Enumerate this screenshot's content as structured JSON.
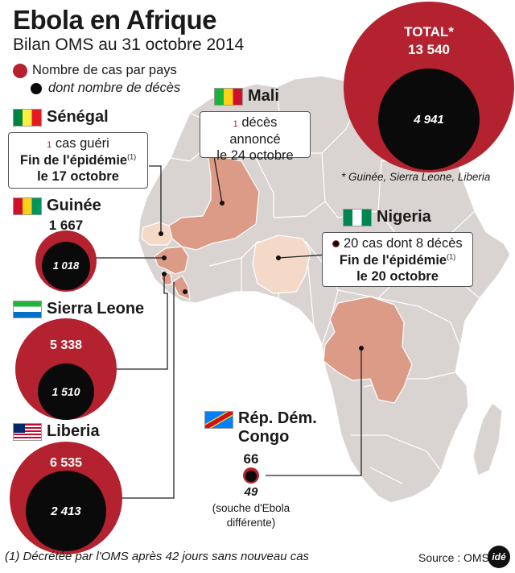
{
  "header": {
    "title": "Ebola en Afrique",
    "subtitle": "Bilan OMS au 31 octobre 2014"
  },
  "legend": {
    "cases_label": "Nombre de cas par pays",
    "deaths_label": "dont nombre de décès"
  },
  "total": {
    "label": "TOTAL*",
    "cases": "13 540",
    "deaths": "4 941",
    "note": "* Guinée, Sierra Leone, Liberia"
  },
  "countries": {
    "mali": {
      "name": "Mali",
      "note_count": "1",
      "note_text": "décès annoncé",
      "note_date": "le 24 octobre"
    },
    "senegal": {
      "name": "Sénégal",
      "note_count": "1",
      "note_text": "cas guéri",
      "note_bold": "Fin de l'épidémie",
      "note_sup": "(1)",
      "note_date": "le 17 octobre"
    },
    "guinee": {
      "name": "Guinée",
      "cases": "1 667",
      "deaths": "1 018"
    },
    "nigeria": {
      "name": "Nigeria",
      "note_text": "20 cas dont 8 décès",
      "note_bold": "Fin de l'épidémie",
      "note_sup": "(1)",
      "note_date": "le 20 octobre"
    },
    "sierra_leone": {
      "name": "Sierra Leone",
      "cases": "5 338",
      "deaths": "1 510"
    },
    "liberia": {
      "name": "Liberia",
      "cases": "6 535",
      "deaths": "2 413"
    },
    "rdc": {
      "name_line1": "Rép. Dém.",
      "name_line2": "Congo",
      "cases": "66",
      "deaths": "49",
      "note_line1": "(souche d'Ebola",
      "note_line2": "différente)"
    }
  },
  "footer": {
    "footnote": "(1) Décrétée par l'OMS après 42 jours sans nouveau cas",
    "source": "Source : OMS",
    "logo": "idé"
  },
  "colors": {
    "cases_red": "#b4222f",
    "deaths_black": "#0a0a0a",
    "land": "#d9d4d2",
    "affected": "#dc9b86",
    "affected_light": "#f4d8c8"
  }
}
